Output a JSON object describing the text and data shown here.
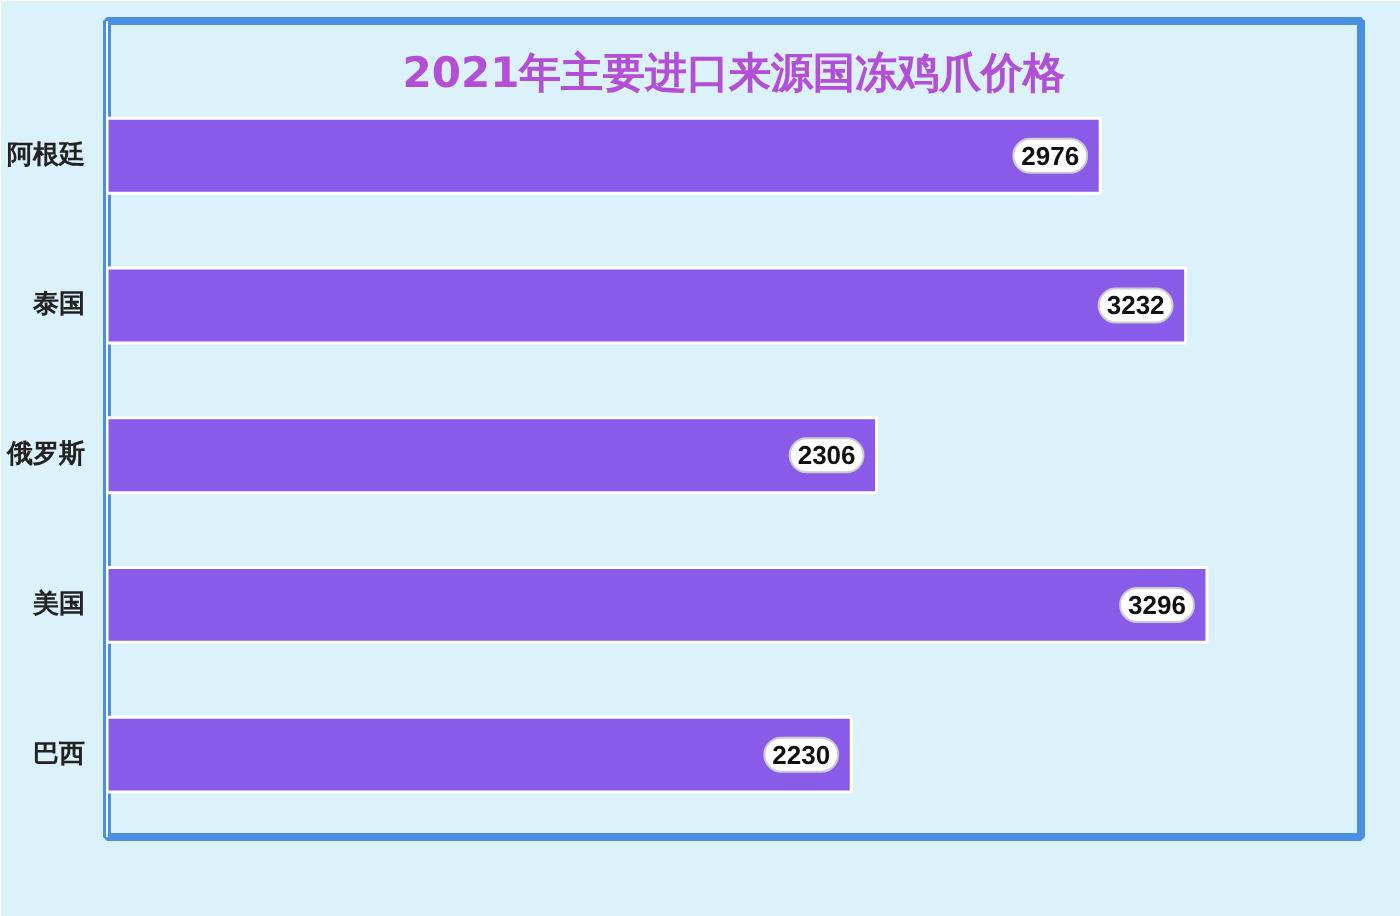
{
  "chart_data": {
    "type": "bar",
    "orientation": "horizontal",
    "title": "2021年主要进口来源国冻鸡爪价格",
    "categories": [
      "阿根廷",
      "泰国",
      "俄罗斯",
      "美国",
      "巴西"
    ],
    "values": [
      2976,
      3232,
      2306,
      3296,
      2230
    ],
    "color": "#8a5ae8",
    "data_labels": true
  }
}
